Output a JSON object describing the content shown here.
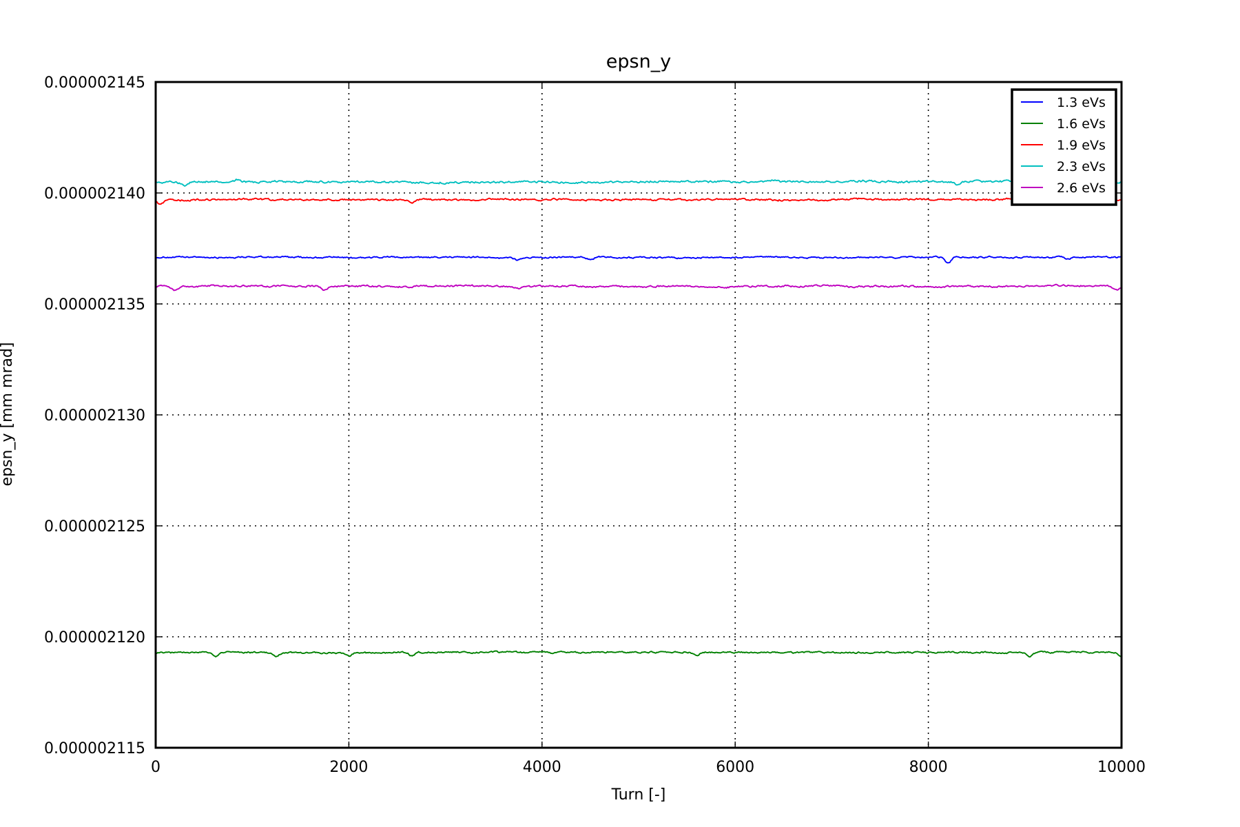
{
  "chart_data": {
    "type": "line",
    "title": "epsn_y",
    "xlabel": "Turn [-]",
    "ylabel": "epsn_y [mm mrad]",
    "xlim": [
      0,
      10000
    ],
    "ylim": [
      2.115e-06,
      2.145e-06
    ],
    "xticks": [
      0,
      2000,
      4000,
      6000,
      8000,
      10000
    ],
    "xtick_labels": [
      "0",
      "2000",
      "4000",
      "6000",
      "8000",
      "10000"
    ],
    "yticks": [
      2.115e-06,
      2.12e-06,
      2.125e-06,
      2.13e-06,
      2.135e-06,
      2.14e-06,
      2.145e-06
    ],
    "ytick_labels": [
      "0.000002115",
      "0.000002120",
      "0.000002125",
      "0.000002130",
      "0.000002135",
      "0.000002140",
      "0.000002145"
    ],
    "grid": true,
    "legend_position": "top-right",
    "series": [
      {
        "name": "1.3 eVs",
        "color": "#0000ff",
        "mean": 2.1371e-06,
        "noise": 6e-11,
        "dips": [
          [
            3750,
            -1.2e-10
          ],
          [
            4500,
            -1e-10
          ],
          [
            8200,
            -3e-10
          ],
          [
            9450,
            -1e-10
          ]
        ]
      },
      {
        "name": "1.6 eVs",
        "color": "#008000",
        "mean": 2.1193e-06,
        "noise": 6e-11,
        "dips": [
          [
            620,
            -2e-10
          ],
          [
            1250,
            -1.8e-10
          ],
          [
            2000,
            -1.5e-10
          ],
          [
            2650,
            -1.5e-10
          ],
          [
            5600,
            -1.2e-10
          ],
          [
            9050,
            -1.8e-10
          ],
          [
            10000,
            -1.5e-10
          ]
        ]
      },
      {
        "name": "1.9 eVs",
        "color": "#ff0000",
        "mean": 2.1397e-06,
        "noise": 7e-11,
        "dips": [
          [
            50,
            -2e-10
          ],
          [
            2650,
            -1.5e-10
          ],
          [
            9000,
            -1.8e-10
          ]
        ]
      },
      {
        "name": "2.3 eVs",
        "color": "#00bfbf",
        "mean": 2.1405e-06,
        "noise": 8e-11,
        "dips": [
          [
            300,
            -1.5e-10
          ],
          [
            850,
            1e-10
          ],
          [
            6400,
            1e-10
          ],
          [
            8300,
            -1.2e-10
          ]
        ]
      },
      {
        "name": "2.6 eVs",
        "color": "#bf00bf",
        "mean": 2.1358e-06,
        "noise": 7e-11,
        "dips": [
          [
            200,
            -1.8e-10
          ],
          [
            1750,
            -1.8e-10
          ],
          [
            3750,
            -1.2e-10
          ],
          [
            9950,
            -1.5e-10
          ]
        ]
      }
    ]
  }
}
